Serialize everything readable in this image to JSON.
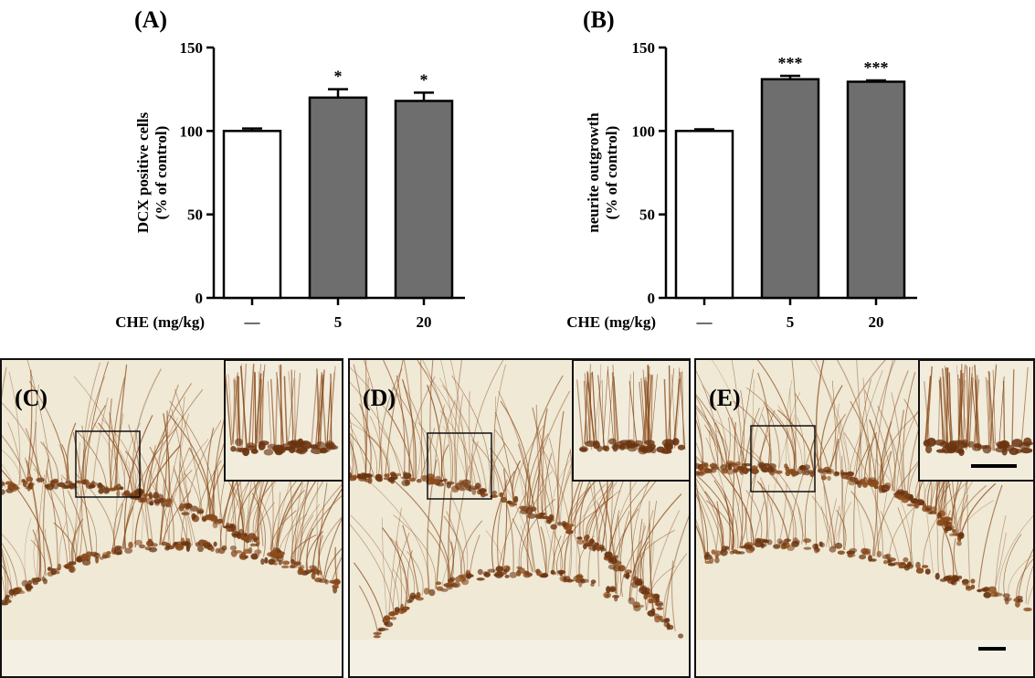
{
  "chart_data": [
    {
      "panel": "(A)",
      "type": "bar",
      "ylabel": [
        "DCX positive cells",
        "(% of control)"
      ],
      "xlabel": "CHE (mg/kg)",
      "categories": [
        "—",
        "5",
        "20"
      ],
      "values": [
        100,
        120,
        118
      ],
      "errors": [
        1.5,
        5,
        5
      ],
      "significance": [
        "",
        "*",
        "*"
      ],
      "ylim": [
        0,
        150
      ],
      "yticks": [
        "0",
        "50",
        "100",
        "150"
      ],
      "bar_colors": [
        "#ffffff",
        "#6e6e6e",
        "#6e6e6e"
      ]
    },
    {
      "panel": "(B)",
      "type": "bar",
      "ylabel": [
        "neurite outgrowth",
        "(% of control)"
      ],
      "xlabel": "CHE (mg/kg)",
      "categories": [
        "—",
        "5",
        "20"
      ],
      "values": [
        100,
        131,
        129.5
      ],
      "errors": [
        1,
        2,
        0.8
      ],
      "significance": [
        "",
        "***",
        "***"
      ],
      "ylim": [
        0,
        150
      ],
      "yticks": [
        "0",
        "50",
        "100",
        "150"
      ],
      "bar_colors": [
        "#ffffff",
        "#6e6e6e",
        "#6e6e6e"
      ]
    }
  ],
  "micrographs": [
    {
      "label": "(C)"
    },
    {
      "label": "(D)"
    },
    {
      "label": "(E)"
    }
  ],
  "colors": {
    "tissue_background": "#efe9d6",
    "stain": "#8a4a1a",
    "stain_dark": "#6b3410"
  }
}
